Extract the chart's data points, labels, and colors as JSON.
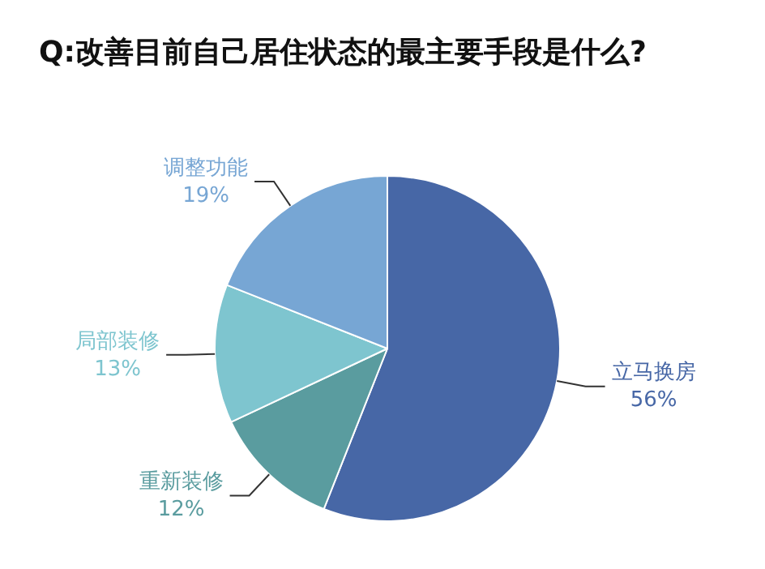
{
  "chart_data": {
    "type": "pie",
    "title": "Q:改善目前自己居住状态的最主要手段是什么?",
    "categories": [
      "立马换房",
      "重新装修",
      "局部装修",
      "调整功能"
    ],
    "values": [
      56,
      12,
      13,
      19
    ],
    "value_labels": [
      "56%",
      "12%",
      "13%",
      "19%"
    ],
    "colors": [
      "#4767a6",
      "#5a9c9f",
      "#7ec5cf",
      "#77a6d4"
    ],
    "legend": false
  }
}
